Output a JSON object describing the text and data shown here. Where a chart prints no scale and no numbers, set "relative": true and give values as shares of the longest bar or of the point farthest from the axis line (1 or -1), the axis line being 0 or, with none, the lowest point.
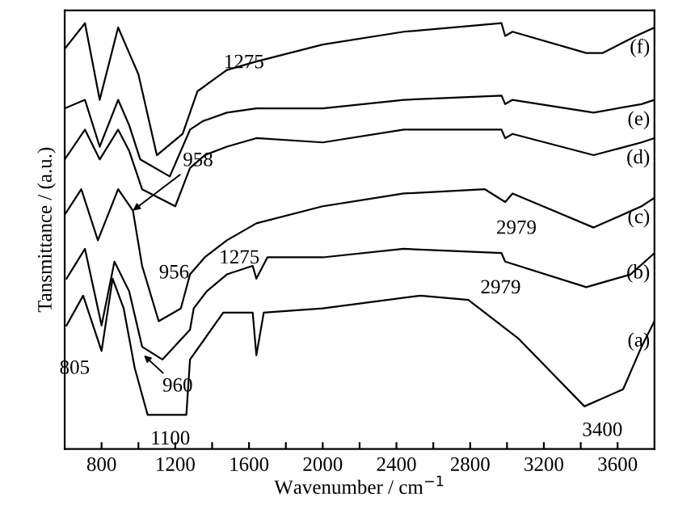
{
  "chart_data": {
    "type": "line",
    "relative": true,
    "xlabel": "Wavenumber / cm$^{−1}$",
    "ylabel": "Tansmittance / (a.u.)",
    "xlim": [
      600,
      3800
    ],
    "xticks": [
      800,
      {
        "value": 1000,
        "label": null
      },
      1200,
      {
        "value": 1400,
        "label": null
      },
      1600,
      {
        "value": 1800,
        "label": null
      },
      2000,
      {
        "value": 2200,
        "label": null
      },
      2400,
      {
        "value": 2600,
        "label": null
      },
      2800,
      {
        "value": 3000,
        "label": null
      },
      3200,
      {
        "value": 3400,
        "label": null
      },
      3600
    ],
    "grid": false,
    "legend": false,
    "marker": "none",
    "line_style": "solid",
    "series": [
      {
        "name": "(f)",
        "color": "#000000",
        "x": [
          600,
          710,
          790,
          890,
          950,
          1000,
          1100,
          1240,
          1320,
          1480,
          1640,
          2000,
          2440,
          2970,
          2990,
          3030,
          3430,
          3520,
          3700,
          3800
        ],
        "values": [
          0.94,
          1.0,
          0.82,
          0.99,
          0.93,
          0.88,
          0.69,
          0.74,
          0.84,
          0.89,
          0.91,
          0.95,
          0.98,
          1.0,
          0.97,
          0.98,
          0.93,
          0.93,
          0.97,
          0.99
        ]
      },
      {
        "name": "(e)",
        "color": "#000000",
        "x": [
          600,
          710,
          790,
          890,
          950,
          1010,
          1170,
          1280,
          1350,
          1480,
          1640,
          2000,
          2440,
          2970,
          2990,
          3030,
          3470,
          3730,
          3800
        ],
        "values": [
          0.8,
          0.82,
          0.71,
          0.82,
          0.76,
          0.68,
          0.64,
          0.75,
          0.77,
          0.79,
          0.8,
          0.8,
          0.82,
          0.83,
          0.81,
          0.82,
          0.79,
          0.81,
          0.82
        ]
      },
      {
        "name": "(d)",
        "color": "#000000",
        "x": [
          600,
          710,
          790,
          890,
          950,
          1020,
          1200,
          1280,
          1360,
          1480,
          1640,
          2000,
          2440,
          2970,
          2990,
          3030,
          3470,
          3730,
          3800
        ],
        "values": [
          0.68,
          0.75,
          0.68,
          0.75,
          0.7,
          0.61,
          0.57,
          0.66,
          0.69,
          0.71,
          0.73,
          0.72,
          0.75,
          0.75,
          0.73,
          0.74,
          0.69,
          0.72,
          0.73
        ]
      },
      {
        "name": "(c)",
        "color": "#000000",
        "x": [
          600,
          690,
          780,
          890,
          970,
          1020,
          1110,
          1230,
          1280,
          1360,
          1480,
          1640,
          2000,
          2440,
          2880,
          2990,
          3030,
          3470,
          3730,
          3800
        ],
        "values": [
          0.55,
          0.61,
          0.49,
          0.61,
          0.56,
          0.43,
          0.3,
          0.33,
          0.41,
          0.45,
          0.49,
          0.53,
          0.57,
          0.6,
          0.61,
          0.58,
          0.6,
          0.52,
          0.57,
          0.59
        ]
      },
      {
        "name": "(b)",
        "color": "#000000",
        "x": [
          610,
          710,
          800,
          870,
          950,
          1020,
          1130,
          1280,
          1300,
          1370,
          1480,
          1620,
          1640,
          1700,
          2000,
          2440,
          2970,
          2990,
          3430,
          3670,
          3800
        ],
        "values": [
          0.4,
          0.47,
          0.29,
          0.44,
          0.37,
          0.24,
          0.21,
          0.28,
          0.33,
          0.37,
          0.41,
          0.43,
          0.4,
          0.45,
          0.45,
          0.47,
          0.46,
          0.44,
          0.38,
          0.41,
          0.46
        ]
      },
      {
        "name": "(a)",
        "color": "#000000",
        "x": [
          610,
          700,
          800,
          860,
          920,
          980,
          1050,
          1260,
          1280,
          1460,
          1620,
          1640,
          1680,
          2000,
          2530,
          2790,
          3060,
          3420,
          3630,
          3730,
          3800
        ],
        "values": [
          0.29,
          0.36,
          0.23,
          0.4,
          0.33,
          0.19,
          0.08,
          0.08,
          0.21,
          0.32,
          0.32,
          0.22,
          0.32,
          0.33,
          0.36,
          0.35,
          0.26,
          0.1,
          0.14,
          0.24,
          0.3
        ]
      }
    ],
    "annotations": [
      {
        "text": "1275",
        "x": 1280,
        "y": 0.79
      },
      {
        "text": "958",
        "x": 970,
        "y": 0.56
      },
      {
        "text": "956",
        "x": 950,
        "y": 0.37
      },
      {
        "text": "1275",
        "x": 1280,
        "y": 0.41
      },
      {
        "text": "2979",
        "x": 2990,
        "y": 0.58
      },
      {
        "text": "2979",
        "x": 2990,
        "y": 0.44
      },
      {
        "text": "805",
        "x": 800,
        "y": 0.23
      },
      {
        "text": "960",
        "x": 1030,
        "y": 0.22
      },
      {
        "text": "1100",
        "x": 1100,
        "y": 0.08
      },
      {
        "text": "3400",
        "x": 3420,
        "y": 0.1
      }
    ]
  }
}
